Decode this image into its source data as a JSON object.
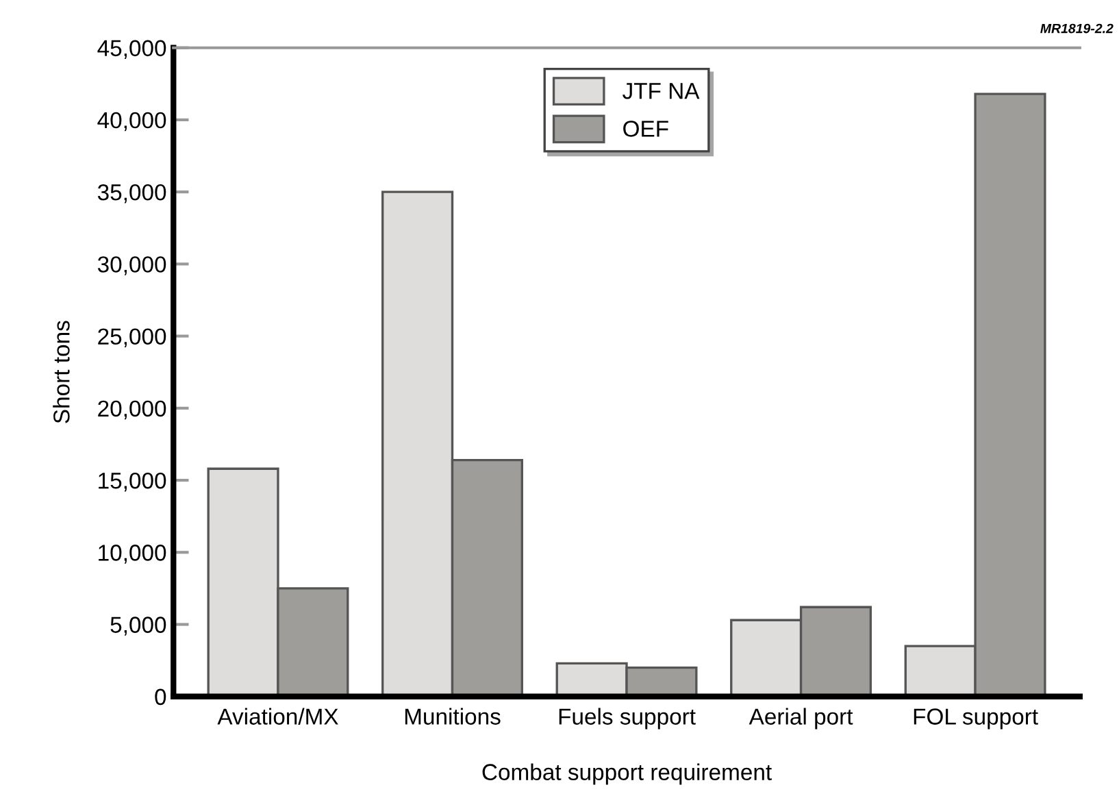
{
  "chart_data": {
    "type": "bar",
    "xlabel": "Combat support requirement",
    "ylabel": "Short tons",
    "categories": [
      "Aviation/MX",
      "Munitions",
      "Fuels support",
      "Aerial port",
      "FOL support"
    ],
    "series": [
      {
        "name": "JTF NA",
        "color": "#dedddb",
        "values": [
          15800,
          35000,
          2300,
          5300,
          3500
        ]
      },
      {
        "name": "OEF",
        "color": "#9e9d99",
        "values": [
          7500,
          16400,
          2000,
          6200,
          41800
        ]
      }
    ],
    "ylim": [
      0,
      45000
    ],
    "yticks": [
      {
        "value": 0,
        "label": "0"
      },
      {
        "value": 5000,
        "label": "5,000"
      },
      {
        "value": 10000,
        "label": "10,000"
      },
      {
        "value": 15000,
        "label": "15,000"
      },
      {
        "value": 20000,
        "label": "20,000"
      },
      {
        "value": 25000,
        "label": "25,000"
      },
      {
        "value": 30000,
        "label": "30,000"
      },
      {
        "value": 35000,
        "label": "35,000"
      },
      {
        "value": 40000,
        "label": "40,000"
      },
      {
        "value": 45000,
        "label": "45,000"
      }
    ],
    "legend": "top",
    "grid": false,
    "annotations": [
      "MR1819-2.2"
    ]
  }
}
